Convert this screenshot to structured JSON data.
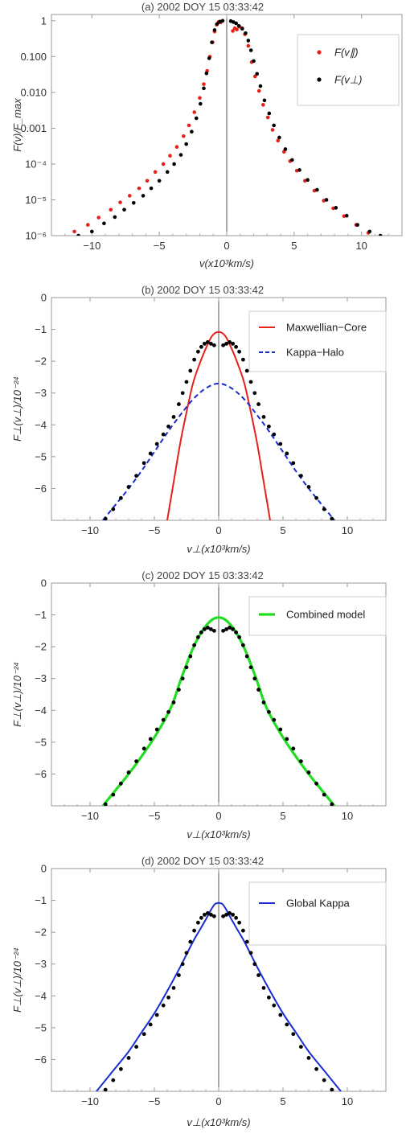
{
  "chart_data": [
    {
      "type": "scatter",
      "title": "(a) 2002 DOY 15 03:33:42",
      "xlabel": "v(x10³km/s)",
      "ylabel": "F(v)/F_max",
      "x_scale": "linear",
      "y_scale": "log",
      "xlim": [
        -13,
        13
      ],
      "ylim": [
        1e-06,
        1.5
      ],
      "xticks": [
        -10,
        -5,
        0,
        5,
        10
      ],
      "xtick_labels": [
        "−10",
        "−5",
        "0",
        "5",
        "10"
      ],
      "yticks": [
        1,
        0.1,
        0.01,
        0.001,
        0.0001,
        1e-05,
        1e-06
      ],
      "ytick_labels": [
        "1",
        "0.100",
        "0.010",
        "0.001",
        "10⁻⁴",
        "10⁻⁵",
        "10⁻⁶"
      ],
      "grid": false,
      "legend_position": "top-right",
      "series": [
        {
          "name": "F(v∥)",
          "color": "#e8201a",
          "points": [
            [
              -11.3,
              1.3e-06
            ],
            [
              -10.3,
              2e-06
            ],
            [
              -9.5,
              3.2e-06
            ],
            [
              -8.6,
              5.3e-06
            ],
            [
              -7.9,
              8.5e-06
            ],
            [
              -7.2,
              1.3e-05
            ],
            [
              -6.5,
              2.1e-05
            ],
            [
              -5.9,
              3.4e-05
            ],
            [
              -5.3,
              6e-05
            ],
            [
              -4.7,
              0.0001
            ],
            [
              -4.2,
              0.00017
            ],
            [
              -3.7,
              0.0003
            ],
            [
              -3.2,
              0.0006
            ],
            [
              -2.8,
              0.0012
            ],
            [
              -2.4,
              0.0028
            ],
            [
              -2.0,
              0.007
            ],
            [
              -1.7,
              0.017
            ],
            [
              -1.45,
              0.04
            ],
            [
              -1.25,
              0.1
            ],
            [
              -1.05,
              0.25
            ],
            [
              -0.9,
              0.5
            ],
            [
              -0.75,
              0.78
            ],
            [
              -0.6,
              0.93
            ],
            [
              -0.45,
              0.9
            ],
            [
              0.45,
              0.52
            ],
            [
              0.6,
              0.62
            ],
            [
              0.75,
              0.57
            ],
            [
              0.95,
              0.68
            ],
            [
              1.15,
              0.62
            ],
            [
              1.35,
              0.42
            ],
            [
              1.6,
              0.2
            ],
            [
              1.85,
              0.07
            ],
            [
              2.1,
              0.028
            ],
            [
              2.4,
              0.011
            ],
            [
              2.7,
              0.0045
            ],
            [
              3.05,
              0.002
            ],
            [
              3.4,
              0.0009
            ],
            [
              3.8,
              0.00045
            ],
            [
              4.25,
              0.00022
            ],
            [
              4.7,
              0.00012
            ],
            [
              5.2,
              6.5e-05
            ],
            [
              5.8,
              3.4e-05
            ],
            [
              6.5,
              1.8e-05
            ],
            [
              7.2,
              9.5e-06
            ],
            [
              7.9,
              5.8e-06
            ],
            [
              8.7,
              3.5e-06
            ],
            [
              9.6,
              2e-06
            ],
            [
              10.5,
              1.2e-06
            ]
          ]
        },
        {
          "name": "F(v⊥)",
          "color": "#000000",
          "points": [
            [
              -11.0,
              1e-06
            ],
            [
              -10.0,
              1.3e-06
            ],
            [
              -9.1,
              2.2e-06
            ],
            [
              -8.3,
              3.3e-06
            ],
            [
              -7.6,
              5.3e-06
            ],
            [
              -6.9,
              8.2e-06
            ],
            [
              -6.2,
              1.3e-05
            ],
            [
              -5.6,
              2.1e-05
            ],
            [
              -5.0,
              3.4e-05
            ],
            [
              -4.4,
              6e-05
            ],
            [
              -3.9,
              0.0001
            ],
            [
              -3.4,
              0.00018
            ],
            [
              -3.0,
              0.00036
            ],
            [
              -2.6,
              0.0008
            ],
            [
              -2.25,
              0.0019
            ],
            [
              -1.95,
              0.0048
            ],
            [
              -1.7,
              0.013
            ],
            [
              -1.5,
              0.034
            ],
            [
              -1.3,
              0.09
            ],
            [
              -1.1,
              0.25
            ],
            [
              -0.9,
              0.55
            ],
            [
              -0.7,
              0.82
            ],
            [
              -0.5,
              0.95
            ],
            [
              -0.3,
              1.0
            ],
            [
              0.3,
              0.98
            ],
            [
              0.5,
              0.92
            ],
            [
              0.7,
              0.85
            ],
            [
              0.9,
              0.72
            ],
            [
              1.15,
              0.6
            ],
            [
              1.4,
              0.45
            ],
            [
              1.6,
              0.28
            ],
            [
              1.8,
              0.15
            ],
            [
              2.0,
              0.075
            ],
            [
              2.25,
              0.033
            ],
            [
              2.5,
              0.015
            ],
            [
              2.8,
              0.006
            ],
            [
              3.15,
              0.0026
            ],
            [
              3.5,
              0.0012
            ],
            [
              3.9,
              0.00055
            ],
            [
              4.35,
              0.00026
            ],
            [
              4.85,
              0.00013
            ],
            [
              5.4,
              6.8e-05
            ],
            [
              6.0,
              3.6e-05
            ],
            [
              6.7,
              1.9e-05
            ],
            [
              7.4,
              1e-05
            ],
            [
              8.1,
              6e-06
            ],
            [
              8.9,
              3.6e-06
            ],
            [
              9.7,
              2e-06
            ],
            [
              10.6,
              1.3e-06
            ],
            [
              11.4,
              1e-06
            ]
          ]
        }
      ]
    },
    {
      "type": "line",
      "title": "(b) 2002 DOY 15 03:33:42",
      "xlabel": "v⊥(x10³km/s)",
      "ylabel": "F⊥(v⊥)/10⁻²⁴",
      "xlim": [
        -13,
        13
      ],
      "ylim": [
        -7,
        0
      ],
      "xticks": [
        -10,
        -5,
        0,
        5,
        10
      ],
      "xtick_labels": [
        "−10",
        "−5",
        "0",
        "5",
        "10"
      ],
      "yticks": [
        0,
        -1,
        -2,
        -3,
        -4,
        -5,
        -6
      ],
      "ytick_labels": [
        "0",
        "−1",
        "−2",
        "−3",
        "−4",
        "−5",
        "−6"
      ],
      "grid": false,
      "legend_position": "top-right",
      "series": [
        {
          "name": "Maxwellian−Core",
          "kind": "line",
          "color": "#e8201a",
          "dash": "solid",
          "x": [
            -4.0,
            -3.5,
            -3.0,
            -2.5,
            -2.0,
            -1.5,
            -1.0,
            -0.5,
            0.0,
            0.5,
            1.0,
            1.5,
            2.0,
            2.5,
            3.0,
            3.5,
            4.0
          ],
          "y": [
            -7.0,
            -5.8,
            -4.6,
            -3.6,
            -2.7,
            -2.1,
            -1.6,
            -1.2,
            -1.08,
            -1.2,
            -1.6,
            -2.1,
            -2.7,
            -3.6,
            -4.6,
            -5.8,
            -7.0
          ]
        },
        {
          "name": "Kappa−Halo",
          "kind": "line",
          "color": "#1a2ccf",
          "dash": "dashed",
          "x": [
            -9,
            -8,
            -7,
            -6,
            -5,
            -4,
            -3,
            -2,
            -1,
            0,
            1,
            2,
            3,
            4,
            5,
            6,
            7,
            8,
            9
          ],
          "y": [
            -7.0,
            -6.5,
            -6.0,
            -5.45,
            -4.85,
            -4.25,
            -3.7,
            -3.2,
            -2.85,
            -2.7,
            -2.85,
            -3.2,
            -3.7,
            -4.25,
            -4.85,
            -5.45,
            -6.0,
            -6.5,
            -7.0
          ]
        },
        {
          "name": "data",
          "kind": "points",
          "color": "#000000",
          "x": [
            -8.8,
            -8.2,
            -7.6,
            -7.0,
            -6.4,
            -5.8,
            -5.3,
            -4.8,
            -4.3,
            -3.9,
            -3.5,
            -3.1,
            -2.8,
            -2.5,
            -2.2,
            -1.9,
            -1.6,
            -1.35,
            -1.1,
            -0.85,
            -0.6,
            -0.35,
            0.35,
            0.6,
            0.85,
            1.1,
            1.35,
            1.6,
            1.9,
            2.2,
            2.5,
            2.8,
            3.1,
            3.5,
            3.9,
            4.3,
            4.8,
            5.3,
            5.8,
            6.4,
            7.0,
            7.6,
            8.2,
            8.8
          ],
          "y": [
            -6.95,
            -6.65,
            -6.3,
            -5.95,
            -5.6,
            -5.2,
            -4.9,
            -4.6,
            -4.3,
            -4.05,
            -3.75,
            -3.35,
            -3.0,
            -2.65,
            -2.3,
            -1.95,
            -1.7,
            -1.55,
            -1.45,
            -1.4,
            -1.45,
            -1.5,
            -1.5,
            -1.45,
            -1.4,
            -1.45,
            -1.55,
            -1.7,
            -1.95,
            -2.3,
            -2.65,
            -3.0,
            -3.35,
            -3.75,
            -4.05,
            -4.3,
            -4.6,
            -4.9,
            -5.2,
            -5.6,
            -5.95,
            -6.3,
            -6.65,
            -6.95
          ]
        }
      ]
    },
    {
      "type": "line",
      "title": "(c) 2002 DOY 15 03:33:42",
      "xlabel": "v⊥(x10³km/s)",
      "ylabel": "F⊥(v⊥)/10⁻²⁴",
      "xlim": [
        -13,
        13
      ],
      "ylim": [
        -7,
        0
      ],
      "xticks": [
        -10,
        -5,
        0,
        5,
        10
      ],
      "xtick_labels": [
        "−10",
        "−5",
        "0",
        "5",
        "10"
      ],
      "yticks": [
        0,
        -1,
        -2,
        -3,
        -4,
        -5,
        -6
      ],
      "ytick_labels": [
        "0",
        "−1",
        "−2",
        "−3",
        "−4",
        "−5",
        "−6"
      ],
      "grid": false,
      "legend_position": "top-right",
      "series": [
        {
          "name": "Combined model",
          "kind": "line",
          "color": "#22dd22",
          "dash": "solid",
          "x": [
            -9,
            -8,
            -7,
            -6,
            -5,
            -4,
            -3.5,
            -3,
            -2.5,
            -2,
            -1.5,
            -1,
            -0.5,
            0,
            0.5,
            1,
            1.5,
            2,
            2.5,
            3,
            3.5,
            4,
            5,
            6,
            7,
            8,
            9
          ],
          "y": [
            -7.0,
            -6.5,
            -6.0,
            -5.45,
            -4.85,
            -4.15,
            -3.7,
            -3.1,
            -2.55,
            -2.05,
            -1.65,
            -1.35,
            -1.15,
            -1.08,
            -1.15,
            -1.35,
            -1.65,
            -2.05,
            -2.55,
            -3.1,
            -3.7,
            -4.15,
            -4.85,
            -5.45,
            -6.0,
            -6.5,
            -7.0
          ]
        },
        {
          "name": "data",
          "kind": "points",
          "color": "#000000",
          "x": [
            -8.8,
            -8.2,
            -7.6,
            -7.0,
            -6.4,
            -5.8,
            -5.3,
            -4.8,
            -4.3,
            -3.9,
            -3.5,
            -3.1,
            -2.8,
            -2.5,
            -2.2,
            -1.9,
            -1.6,
            -1.35,
            -1.1,
            -0.85,
            -0.6,
            -0.35,
            0.35,
            0.6,
            0.85,
            1.1,
            1.35,
            1.6,
            1.9,
            2.2,
            2.5,
            2.8,
            3.1,
            3.5,
            3.9,
            4.3,
            4.8,
            5.3,
            5.8,
            6.4,
            7.0,
            7.6,
            8.2,
            8.8
          ],
          "y": [
            -6.95,
            -6.65,
            -6.3,
            -5.95,
            -5.6,
            -5.2,
            -4.9,
            -4.6,
            -4.3,
            -4.05,
            -3.75,
            -3.35,
            -3.0,
            -2.65,
            -2.3,
            -1.95,
            -1.7,
            -1.55,
            -1.45,
            -1.4,
            -1.45,
            -1.5,
            -1.5,
            -1.45,
            -1.4,
            -1.45,
            -1.55,
            -1.7,
            -1.95,
            -2.3,
            -2.65,
            -3.0,
            -3.35,
            -3.75,
            -4.05,
            -4.3,
            -4.6,
            -4.9,
            -5.2,
            -5.6,
            -5.95,
            -6.3,
            -6.65,
            -6.95
          ]
        }
      ]
    },
    {
      "type": "line",
      "title": "(d) 2002 DOY 15 03:33:42",
      "xlabel": "v⊥(x10³km/s)",
      "ylabel": "F⊥(v⊥)/10⁻²⁴",
      "xlim": [
        -13,
        13
      ],
      "ylim": [
        -7,
        0
      ],
      "xticks": [
        -10,
        -5,
        0,
        5,
        10
      ],
      "xtick_labels": [
        "−10",
        "−5",
        "0",
        "5",
        "10"
      ],
      "yticks": [
        0,
        -1,
        -2,
        -3,
        -4,
        -5,
        -6
      ],
      "ytick_labels": [
        "0",
        "−1",
        "−2",
        "−3",
        "−4",
        "−5",
        "−6"
      ],
      "grid": false,
      "legend_position": "top-right",
      "series": [
        {
          "name": "Global Kappa",
          "kind": "line",
          "color": "#1a2ccf",
          "dash": "solid",
          "x": [
            -9.5,
            -9,
            -8,
            -7,
            -6,
            -5,
            -4,
            -3,
            -2,
            -1.5,
            -1,
            -0.6,
            -0.3,
            0,
            0.3,
            0.6,
            1,
            1.5,
            2,
            3,
            4,
            5,
            6,
            7,
            8,
            9,
            9.5
          ],
          "y": [
            -7.0,
            -6.75,
            -6.25,
            -5.75,
            -5.15,
            -4.55,
            -3.85,
            -3.1,
            -2.3,
            -1.95,
            -1.6,
            -1.3,
            -1.12,
            -1.08,
            -1.12,
            -1.3,
            -1.6,
            -1.95,
            -2.3,
            -3.1,
            -3.85,
            -4.55,
            -5.15,
            -5.75,
            -6.25,
            -6.75,
            -7.0
          ]
        },
        {
          "name": "data",
          "kind": "points",
          "color": "#000000",
          "x": [
            -8.8,
            -8.2,
            -7.6,
            -7.0,
            -6.4,
            -5.8,
            -5.3,
            -4.8,
            -4.3,
            -3.9,
            -3.5,
            -3.1,
            -2.8,
            -2.5,
            -2.2,
            -1.9,
            -1.6,
            -1.35,
            -1.1,
            -0.85,
            -0.6,
            -0.35,
            0.35,
            0.6,
            0.85,
            1.1,
            1.35,
            1.6,
            1.9,
            2.2,
            2.5,
            2.8,
            3.1,
            3.5,
            3.9,
            4.3,
            4.8,
            5.3,
            5.8,
            6.4,
            7.0,
            7.6,
            8.2,
            8.8
          ],
          "y": [
            -6.95,
            -6.65,
            -6.3,
            -5.95,
            -5.6,
            -5.2,
            -4.9,
            -4.6,
            -4.3,
            -4.05,
            -3.75,
            -3.35,
            -3.0,
            -2.65,
            -2.3,
            -1.95,
            -1.7,
            -1.55,
            -1.45,
            -1.4,
            -1.45,
            -1.5,
            -1.5,
            -1.45,
            -1.4,
            -1.45,
            -1.55,
            -1.7,
            -1.95,
            -2.3,
            -2.65,
            -3.0,
            -3.35,
            -3.75,
            -4.05,
            -4.3,
            -4.6,
            -4.9,
            -5.2,
            -5.6,
            -5.95,
            -6.3,
            -6.65,
            -6.95
          ]
        }
      ]
    }
  ]
}
